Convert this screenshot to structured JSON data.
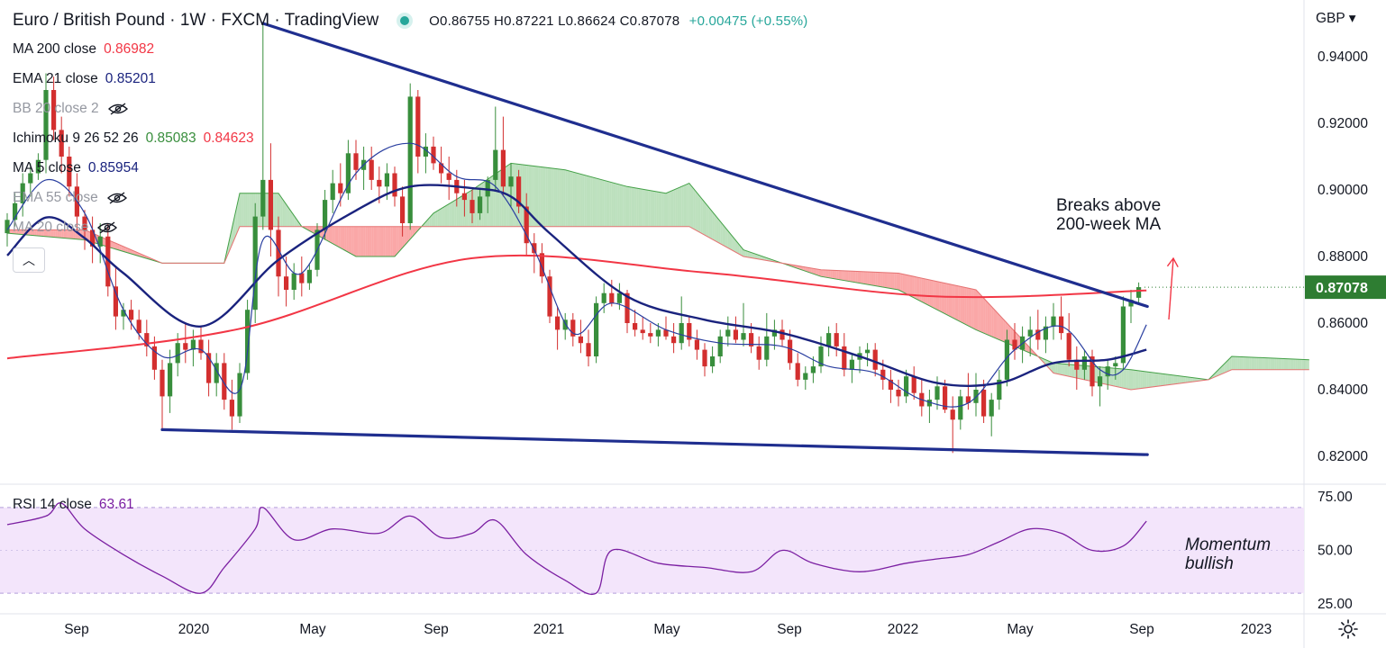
{
  "header": {
    "title": "Euro / British Pound · 1W · FXCM · TradingView",
    "open": "O0.86755",
    "high": "H0.87221",
    "low": "L0.86624",
    "close": "C0.87078",
    "change": "+0.00475 (+0.55%)"
  },
  "currency": "GBP",
  "indicators": [
    {
      "label": "MA 200 close",
      "value": "0.86982",
      "value_color": "#f23645",
      "hidden": false
    },
    {
      "label": "EMA 21 close",
      "value": "0.85201",
      "value_color": "#1a237e",
      "hidden": false
    },
    {
      "label": "BB 20 close 2",
      "value": "",
      "value_color": "#9598a1",
      "hidden": true
    },
    {
      "label": "Ichimoku 9 26 52 26",
      "value": "0.85083",
      "value2": "0.84623",
      "value_color": "#388e3c",
      "value2_color": "#f23645",
      "hidden": false
    },
    {
      "label": "MA 5 close",
      "value": "0.85954",
      "value_color": "#1a237e",
      "hidden": false
    },
    {
      "label": "EMA 55 close",
      "value": "",
      "value_color": "#9598a1",
      "hidden": true
    },
    {
      "label": "MA 20 close",
      "value": "",
      "value_color": "#9598a1",
      "hidden": true
    }
  ],
  "collapse_icon": "chevron-up-icon",
  "price_axis": {
    "ticks": [
      "0.94000",
      "0.92000",
      "0.90000",
      "0.88000",
      "0.86000",
      "0.84000",
      "0.82000"
    ],
    "last_price": "0.87078"
  },
  "rsi": {
    "label": "RSI 14 close",
    "value": "63.61",
    "ticks": [
      "75.00",
      "50.00",
      "25.00"
    ]
  },
  "time_axis": {
    "labels": [
      "Sep",
      "2020",
      "May",
      "Sep",
      "2021",
      "May",
      "Sep",
      "2022",
      "May",
      "Sep",
      "2023"
    ]
  },
  "annotations": {
    "ma_break": [
      "Breaks above",
      "200-week MA"
    ],
    "momentum": [
      "Momentum",
      "bullish"
    ]
  },
  "colors": {
    "up": "#388e3c",
    "down": "#d32f2f",
    "ma200": "#f23645",
    "ema21": "#1a237e",
    "ma5": "#2a3fa0",
    "trendline": "#1f2e8f",
    "cloud_bull": "#a5d6a7",
    "cloud_bear": "#f88a8a",
    "rsi_line": "#7b1fa2",
    "rsi_band": "#f3e5fb",
    "annotation_arrow": "#f23645",
    "last_price_bg": "#2e7d32"
  },
  "chart_data": {
    "type": "candlestick",
    "timeframe": "1W",
    "symbol": "EURGBP",
    "ylim": [
      0.815,
      0.952
    ],
    "x_range": [
      "2019-07",
      "2023-02"
    ],
    "candles": [
      [
        0.887,
        0.893,
        0.883,
        0.891
      ],
      [
        0.891,
        0.899,
        0.889,
        0.896
      ],
      [
        0.896,
        0.905,
        0.892,
        0.902
      ],
      [
        0.902,
        0.908,
        0.898,
        0.905
      ],
      [
        0.905,
        0.911,
        0.903,
        0.909
      ],
      [
        0.909,
        0.935,
        0.905,
        0.93
      ],
      [
        0.93,
        0.934,
        0.915,
        0.918
      ],
      [
        0.918,
        0.922,
        0.905,
        0.91
      ],
      [
        0.91,
        0.913,
        0.898,
        0.901
      ],
      [
        0.901,
        0.905,
        0.888,
        0.892
      ],
      [
        0.892,
        0.894,
        0.882,
        0.888
      ],
      [
        0.888,
        0.892,
        0.878,
        0.883
      ],
      [
        0.883,
        0.89,
        0.878,
        0.886
      ],
      [
        0.886,
        0.89,
        0.868,
        0.871
      ],
      [
        0.871,
        0.877,
        0.858,
        0.862
      ],
      [
        0.862,
        0.866,
        0.858,
        0.864
      ],
      [
        0.864,
        0.867,
        0.858,
        0.861
      ],
      [
        0.861,
        0.864,
        0.855,
        0.857
      ],
      [
        0.857,
        0.861,
        0.85,
        0.853
      ],
      [
        0.853,
        0.856,
        0.843,
        0.846
      ],
      [
        0.846,
        0.849,
        0.828,
        0.838
      ],
      [
        0.838,
        0.852,
        0.833,
        0.848
      ],
      [
        0.848,
        0.857,
        0.844,
        0.854
      ],
      [
        0.854,
        0.86,
        0.848,
        0.852
      ],
      [
        0.852,
        0.858,
        0.847,
        0.855
      ],
      [
        0.855,
        0.859,
        0.849,
        0.851
      ],
      [
        0.851,
        0.855,
        0.838,
        0.842
      ],
      [
        0.842,
        0.851,
        0.838,
        0.848
      ],
      [
        0.848,
        0.851,
        0.834,
        0.837
      ],
      [
        0.837,
        0.843,
        0.828,
        0.832
      ],
      [
        0.832,
        0.848,
        0.83,
        0.845
      ],
      [
        0.845,
        0.867,
        0.843,
        0.864
      ],
      [
        0.864,
        0.896,
        0.86,
        0.892
      ],
      [
        0.892,
        0.95,
        0.888,
        0.903
      ],
      [
        0.903,
        0.914,
        0.88,
        0.888
      ],
      [
        0.888,
        0.892,
        0.868,
        0.874
      ],
      [
        0.874,
        0.88,
        0.865,
        0.87
      ],
      [
        0.87,
        0.878,
        0.867,
        0.875
      ],
      [
        0.875,
        0.88,
        0.868,
        0.872
      ],
      [
        0.872,
        0.878,
        0.87,
        0.876
      ],
      [
        0.876,
        0.89,
        0.874,
        0.888
      ],
      [
        0.888,
        0.9,
        0.885,
        0.897
      ],
      [
        0.897,
        0.906,
        0.893,
        0.902
      ],
      [
        0.902,
        0.908,
        0.895,
        0.899
      ],
      [
        0.899,
        0.915,
        0.897,
        0.911
      ],
      [
        0.911,
        0.915,
        0.903,
        0.906
      ],
      [
        0.906,
        0.913,
        0.9,
        0.909
      ],
      [
        0.909,
        0.913,
        0.9,
        0.903
      ],
      [
        0.903,
        0.907,
        0.896,
        0.901
      ],
      [
        0.901,
        0.908,
        0.897,
        0.905
      ],
      [
        0.905,
        0.907,
        0.895,
        0.898
      ],
      [
        0.898,
        0.901,
        0.886,
        0.89
      ],
      [
        0.89,
        0.932,
        0.888,
        0.928
      ],
      [
        0.928,
        0.93,
        0.905,
        0.91
      ],
      [
        0.91,
        0.917,
        0.905,
        0.913
      ],
      [
        0.913,
        0.916,
        0.906,
        0.908
      ],
      [
        0.908,
        0.913,
        0.902,
        0.905
      ],
      [
        0.905,
        0.91,
        0.897,
        0.903
      ],
      [
        0.903,
        0.906,
        0.895,
        0.899
      ],
      [
        0.899,
        0.903,
        0.892,
        0.897
      ],
      [
        0.897,
        0.9,
        0.89,
        0.893
      ],
      [
        0.893,
        0.9,
        0.891,
        0.898
      ],
      [
        0.898,
        0.904,
        0.893,
        0.903
      ],
      [
        0.903,
        0.925,
        0.9,
        0.912
      ],
      [
        0.912,
        0.922,
        0.898,
        0.901
      ],
      [
        0.901,
        0.908,
        0.895,
        0.904
      ],
      [
        0.904,
        0.906,
        0.893,
        0.895
      ],
      [
        0.895,
        0.899,
        0.88,
        0.884
      ],
      [
        0.884,
        0.887,
        0.875,
        0.881
      ],
      [
        0.881,
        0.884,
        0.872,
        0.874
      ],
      [
        0.874,
        0.876,
        0.86,
        0.862
      ],
      [
        0.862,
        0.865,
        0.852,
        0.858
      ],
      [
        0.858,
        0.863,
        0.855,
        0.861
      ],
      [
        0.861,
        0.863,
        0.853,
        0.856
      ],
      [
        0.856,
        0.861,
        0.851,
        0.854
      ],
      [
        0.854,
        0.858,
        0.847,
        0.85
      ],
      [
        0.85,
        0.868,
        0.848,
        0.866
      ],
      [
        0.866,
        0.872,
        0.863,
        0.869
      ],
      [
        0.869,
        0.873,
        0.865,
        0.866
      ],
      [
        0.866,
        0.872,
        0.864,
        0.869
      ],
      [
        0.869,
        0.87,
        0.857,
        0.86
      ],
      [
        0.86,
        0.864,
        0.856,
        0.858
      ],
      [
        0.858,
        0.862,
        0.855,
        0.857
      ],
      [
        0.857,
        0.86,
        0.854,
        0.856
      ],
      [
        0.856,
        0.86,
        0.853,
        0.858
      ],
      [
        0.858,
        0.862,
        0.855,
        0.856
      ],
      [
        0.856,
        0.86,
        0.851,
        0.854
      ],
      [
        0.854,
        0.868,
        0.852,
        0.86
      ],
      [
        0.86,
        0.862,
        0.853,
        0.855
      ],
      [
        0.855,
        0.858,
        0.849,
        0.852
      ],
      [
        0.852,
        0.854,
        0.844,
        0.847
      ],
      [
        0.847,
        0.853,
        0.845,
        0.85
      ],
      [
        0.85,
        0.858,
        0.848,
        0.856
      ],
      [
        0.856,
        0.862,
        0.853,
        0.858
      ],
      [
        0.858,
        0.862,
        0.854,
        0.855
      ],
      [
        0.855,
        0.866,
        0.853,
        0.857
      ],
      [
        0.857,
        0.86,
        0.851,
        0.853
      ],
      [
        0.853,
        0.856,
        0.846,
        0.849
      ],
      [
        0.849,
        0.863,
        0.847,
        0.856
      ],
      [
        0.856,
        0.861,
        0.852,
        0.858
      ],
      [
        0.858,
        0.861,
        0.853,
        0.855
      ],
      [
        0.855,
        0.858,
        0.846,
        0.848
      ],
      [
        0.848,
        0.851,
        0.841,
        0.843
      ],
      [
        0.843,
        0.847,
        0.84,
        0.845
      ],
      [
        0.845,
        0.85,
        0.842,
        0.847
      ],
      [
        0.847,
        0.856,
        0.845,
        0.853
      ],
      [
        0.853,
        0.859,
        0.85,
        0.857
      ],
      [
        0.857,
        0.86,
        0.85,
        0.853
      ],
      [
        0.853,
        0.857,
        0.844,
        0.846
      ],
      [
        0.846,
        0.851,
        0.842,
        0.849
      ],
      [
        0.849,
        0.853,
        0.845,
        0.851
      ],
      [
        0.851,
        0.854,
        0.847,
        0.852
      ],
      [
        0.852,
        0.854,
        0.844,
        0.846
      ],
      [
        0.846,
        0.849,
        0.84,
        0.843
      ],
      [
        0.843,
        0.846,
        0.836,
        0.84
      ],
      [
        0.84,
        0.843,
        0.835,
        0.838
      ],
      [
        0.838,
        0.846,
        0.836,
        0.844
      ],
      [
        0.844,
        0.847,
        0.837,
        0.839
      ],
      [
        0.839,
        0.843,
        0.832,
        0.835
      ],
      [
        0.835,
        0.84,
        0.83,
        0.837
      ],
      [
        0.837,
        0.844,
        0.834,
        0.841
      ],
      [
        0.841,
        0.843,
        0.833,
        0.834
      ],
      [
        0.834,
        0.838,
        0.821,
        0.831
      ],
      [
        0.831,
        0.84,
        0.828,
        0.838
      ],
      [
        0.838,
        0.845,
        0.834,
        0.836
      ],
      [
        0.836,
        0.845,
        0.832,
        0.84
      ],
      [
        0.84,
        0.843,
        0.83,
        0.832
      ],
      [
        0.832,
        0.839,
        0.826,
        0.837
      ],
      [
        0.837,
        0.846,
        0.834,
        0.843
      ],
      [
        0.843,
        0.858,
        0.841,
        0.855
      ],
      [
        0.855,
        0.86,
        0.849,
        0.852
      ],
      [
        0.852,
        0.859,
        0.848,
        0.856
      ],
      [
        0.856,
        0.862,
        0.85,
        0.858
      ],
      [
        0.858,
        0.864,
        0.852,
        0.855
      ],
      [
        0.855,
        0.862,
        0.851,
        0.859
      ],
      [
        0.859,
        0.866,
        0.855,
        0.862
      ],
      [
        0.862,
        0.868,
        0.855,
        0.857
      ],
      [
        0.857,
        0.863,
        0.847,
        0.849
      ],
      [
        0.849,
        0.853,
        0.84,
        0.846
      ],
      [
        0.846,
        0.852,
        0.843,
        0.85
      ],
      [
        0.85,
        0.852,
        0.838,
        0.841
      ],
      [
        0.841,
        0.847,
        0.835,
        0.844
      ],
      [
        0.844,
        0.849,
        0.84,
        0.847
      ],
      [
        0.847,
        0.85,
        0.843,
        0.848
      ],
      [
        0.848,
        0.868,
        0.846,
        0.865
      ],
      [
        0.865,
        0.87,
        0.86,
        0.867
      ],
      [
        0.8676,
        0.8722,
        0.8662,
        0.8708
      ]
    ],
    "ma200": [
      [
        0,
        0.8494
      ],
      [
        30,
        0.8583
      ],
      [
        60,
        0.8795
      ],
      [
        90,
        0.8752
      ],
      [
        120,
        0.868
      ],
      [
        147,
        0.8698
      ]
    ],
    "ema21": [
      [
        0,
        0.8803
      ],
      [
        5,
        0.8917
      ],
      [
        10,
        0.8855
      ],
      [
        15,
        0.875
      ],
      [
        25,
        0.859
      ],
      [
        35,
        0.879
      ],
      [
        45,
        0.8938
      ],
      [
        52,
        0.901
      ],
      [
        60,
        0.9005
      ],
      [
        65,
        0.898
      ],
      [
        70,
        0.887
      ],
      [
        80,
        0.868
      ],
      [
        90,
        0.861
      ],
      [
        100,
        0.857
      ],
      [
        110,
        0.85
      ],
      [
        120,
        0.842
      ],
      [
        128,
        0.842
      ],
      [
        135,
        0.848
      ],
      [
        142,
        0.849
      ],
      [
        147,
        0.852
      ]
    ],
    "ma5": [
      [
        0,
        0.888
      ],
      [
        5,
        0.903
      ],
      [
        10,
        0.893
      ],
      [
        15,
        0.864
      ],
      [
        20,
        0.85
      ],
      [
        25,
        0.852
      ],
      [
        30,
        0.84
      ],
      [
        33,
        0.885
      ],
      [
        38,
        0.875
      ],
      [
        45,
        0.905
      ],
      [
        52,
        0.914
      ],
      [
        58,
        0.904
      ],
      [
        63,
        0.901
      ],
      [
        68,
        0.882
      ],
      [
        73,
        0.857
      ],
      [
        78,
        0.866
      ],
      [
        85,
        0.858
      ],
      [
        92,
        0.854
      ],
      [
        100,
        0.853
      ],
      [
        106,
        0.847
      ],
      [
        112,
        0.845
      ],
      [
        118,
        0.837
      ],
      [
        124,
        0.836
      ],
      [
        130,
        0.852
      ],
      [
        136,
        0.859
      ],
      [
        141,
        0.846
      ],
      [
        144,
        0.846
      ],
      [
        147,
        0.8595
      ]
    ],
    "cloud_span_a": [
      [
        0,
        0.887
      ],
      [
        10,
        0.885
      ],
      [
        20,
        0.878
      ],
      [
        28,
        0.878
      ],
      [
        30,
        0.899
      ],
      [
        35,
        0.899
      ],
      [
        38,
        0.889
      ],
      [
        45,
        0.88
      ],
      [
        50,
        0.88
      ],
      [
        55,
        0.893
      ],
      [
        60,
        0.9
      ],
      [
        65,
        0.908
      ],
      [
        72,
        0.906
      ],
      [
        80,
        0.901
      ],
      [
        85,
        0.899
      ],
      [
        88,
        0.902
      ],
      [
        95,
        0.882
      ],
      [
        105,
        0.874
      ],
      [
        115,
        0.87
      ],
      [
        125,
        0.858
      ],
      [
        135,
        0.848
      ],
      [
        145,
        0.846
      ],
      [
        155,
        0.843
      ],
      [
        158,
        0.85
      ],
      [
        168,
        0.849
      ]
    ],
    "cloud_span_b": [
      [
        0,
        0.888
      ],
      [
        10,
        0.888
      ],
      [
        20,
        0.878
      ],
      [
        28,
        0.878
      ],
      [
        30,
        0.889
      ],
      [
        60,
        0.889
      ],
      [
        80,
        0.889
      ],
      [
        88,
        0.889
      ],
      [
        95,
        0.88
      ],
      [
        105,
        0.876
      ],
      [
        115,
        0.875
      ],
      [
        125,
        0.87
      ],
      [
        135,
        0.845
      ],
      [
        145,
        0.84
      ],
      [
        155,
        0.843
      ],
      [
        158,
        0.846
      ],
      [
        168,
        0.846
      ]
    ],
    "trendlines": [
      {
        "name": "resistance",
        "points": [
          [
            33,
            0.95
          ],
          [
            142,
            0.865
          ]
        ]
      },
      {
        "name": "support",
        "points": [
          [
            20,
            0.828
          ],
          [
            142,
            0.8205
          ]
        ]
      }
    ],
    "rsi": [
      [
        0,
        62
      ],
      [
        5,
        66
      ],
      [
        7,
        72
      ],
      [
        10,
        60
      ],
      [
        15,
        48
      ],
      [
        20,
        38
      ],
      [
        25,
        30
      ],
      [
        28,
        42
      ],
      [
        32,
        60
      ],
      [
        33,
        70
      ],
      [
        37,
        55
      ],
      [
        42,
        60
      ],
      [
        48,
        58
      ],
      [
        52,
        66
      ],
      [
        56,
        56
      ],
      [
        60,
        58
      ],
      [
        63,
        64
      ],
      [
        67,
        48
      ],
      [
        72,
        36
      ],
      [
        76,
        30
      ],
      [
        78,
        50
      ],
      [
        84,
        44
      ],
      [
        90,
        42
      ],
      [
        96,
        40
      ],
      [
        100,
        50
      ],
      [
        104,
        44
      ],
      [
        110,
        40
      ],
      [
        116,
        44
      ],
      [
        120,
        46
      ],
      [
        124,
        48
      ],
      [
        128,
        54
      ],
      [
        132,
        60
      ],
      [
        136,
        58
      ],
      [
        140,
        50
      ],
      [
        144,
        52
      ],
      [
        147,
        63.61
      ]
    ],
    "rsi_ylim": [
      22,
      80
    ],
    "rsi_band": [
      30,
      70
    ]
  }
}
